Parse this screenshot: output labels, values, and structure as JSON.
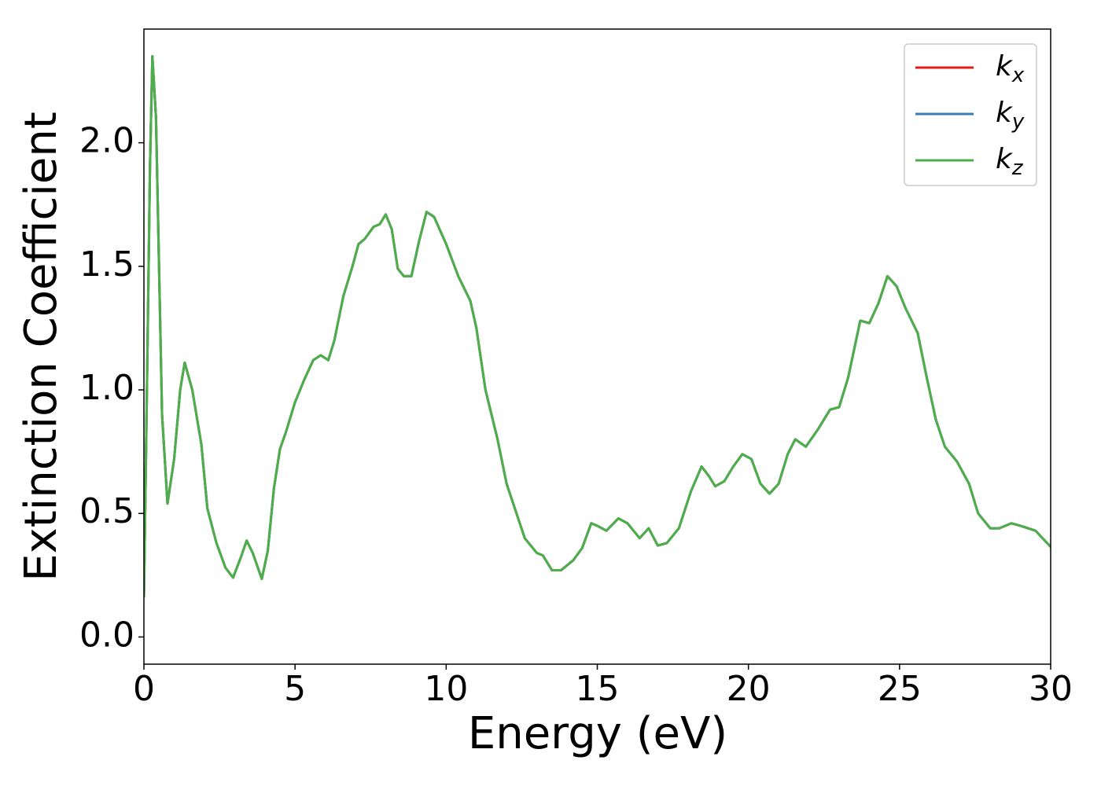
{
  "chart_data": {
    "type": "line",
    "xlabel": "Energy (eV)",
    "ylabel": "Extinction Coefficient",
    "x": [
      0,
      0.1,
      0.2,
      0.28,
      0.4,
      0.5,
      0.6,
      0.78,
      1.0,
      1.2,
      1.35,
      1.6,
      1.9,
      2.1,
      2.4,
      2.7,
      2.95,
      3.2,
      3.4,
      3.6,
      3.9,
      4.1,
      4.3,
      4.5,
      4.7,
      5.0,
      5.3,
      5.6,
      5.85,
      6.1,
      6.3,
      6.6,
      6.9,
      7.1,
      7.3,
      7.6,
      7.8,
      8.0,
      8.2,
      8.4,
      8.6,
      8.85,
      9.1,
      9.35,
      9.6,
      10.0,
      10.4,
      10.8,
      11.0,
      11.3,
      11.7,
      12.0,
      12.3,
      12.6,
      13.0,
      13.2,
      13.5,
      13.8,
      14.2,
      14.5,
      14.8,
      15.0,
      15.3,
      15.7,
      16.0,
      16.4,
      16.7,
      17.0,
      17.3,
      17.7,
      18.1,
      18.45,
      18.7,
      18.9,
      19.2,
      19.5,
      19.8,
      20.1,
      20.4,
      20.7,
      21.0,
      21.3,
      21.55,
      21.9,
      22.3,
      22.7,
      23.0,
      23.3,
      23.7,
      24.0,
      24.3,
      24.6,
      24.9,
      25.2,
      25.6,
      25.9,
      26.2,
      26.5,
      26.9,
      27.3,
      27.6,
      28.0,
      28.3,
      28.7,
      29.0,
      29.5,
      30.0
    ],
    "series": [
      {
        "name": "kx",
        "color": "#e41a1c",
        "values": [
          0.16,
          1.0,
          1.9,
          2.35,
          2.1,
          1.5,
          0.9,
          0.54,
          0.72,
          1.0,
          1.11,
          1.0,
          0.78,
          0.52,
          0.38,
          0.28,
          0.24,
          0.32,
          0.39,
          0.34,
          0.235,
          0.35,
          0.6,
          0.76,
          0.83,
          0.95,
          1.04,
          1.12,
          1.14,
          1.12,
          1.2,
          1.38,
          1.5,
          1.59,
          1.61,
          1.66,
          1.67,
          1.71,
          1.65,
          1.49,
          1.46,
          1.46,
          1.6,
          1.72,
          1.7,
          1.59,
          1.46,
          1.36,
          1.25,
          1.0,
          0.8,
          0.62,
          0.51,
          0.4,
          0.34,
          0.33,
          0.27,
          0.27,
          0.31,
          0.36,
          0.46,
          0.45,
          0.43,
          0.48,
          0.46,
          0.4,
          0.44,
          0.37,
          0.38,
          0.44,
          0.59,
          0.69,
          0.65,
          0.61,
          0.63,
          0.69,
          0.74,
          0.72,
          0.62,
          0.58,
          0.62,
          0.74,
          0.8,
          0.77,
          0.84,
          0.92,
          0.93,
          1.05,
          1.28,
          1.27,
          1.35,
          1.46,
          1.42,
          1.33,
          1.23,
          1.05,
          0.88,
          0.77,
          0.71,
          0.62,
          0.5,
          0.44,
          0.44,
          0.46,
          0.45,
          0.43,
          0.365
        ]
      },
      {
        "name": "ky",
        "color": "#377eb8",
        "values": [
          0.16,
          1.0,
          1.9,
          2.35,
          2.1,
          1.5,
          0.9,
          0.54,
          0.72,
          1.0,
          1.11,
          1.0,
          0.78,
          0.52,
          0.38,
          0.28,
          0.24,
          0.32,
          0.39,
          0.34,
          0.235,
          0.35,
          0.6,
          0.76,
          0.83,
          0.95,
          1.04,
          1.12,
          1.14,
          1.12,
          1.2,
          1.38,
          1.5,
          1.59,
          1.61,
          1.66,
          1.67,
          1.71,
          1.65,
          1.49,
          1.46,
          1.46,
          1.6,
          1.72,
          1.7,
          1.59,
          1.46,
          1.36,
          1.25,
          1.0,
          0.8,
          0.62,
          0.51,
          0.4,
          0.34,
          0.33,
          0.27,
          0.27,
          0.31,
          0.36,
          0.46,
          0.45,
          0.43,
          0.48,
          0.46,
          0.4,
          0.44,
          0.37,
          0.38,
          0.44,
          0.59,
          0.69,
          0.65,
          0.61,
          0.63,
          0.69,
          0.74,
          0.72,
          0.62,
          0.58,
          0.62,
          0.74,
          0.8,
          0.77,
          0.84,
          0.92,
          0.93,
          1.05,
          1.28,
          1.27,
          1.35,
          1.46,
          1.42,
          1.33,
          1.23,
          1.05,
          0.88,
          0.77,
          0.71,
          0.62,
          0.5,
          0.44,
          0.44,
          0.46,
          0.45,
          0.43,
          0.365
        ]
      },
      {
        "name": "kz",
        "color": "#4daf4a",
        "values": [
          0.16,
          1.0,
          1.9,
          2.35,
          2.1,
          1.5,
          0.9,
          0.54,
          0.72,
          1.0,
          1.11,
          1.0,
          0.78,
          0.52,
          0.38,
          0.28,
          0.24,
          0.32,
          0.39,
          0.34,
          0.235,
          0.35,
          0.6,
          0.76,
          0.83,
          0.95,
          1.04,
          1.12,
          1.14,
          1.12,
          1.2,
          1.38,
          1.5,
          1.59,
          1.61,
          1.66,
          1.67,
          1.71,
          1.65,
          1.49,
          1.46,
          1.46,
          1.6,
          1.72,
          1.7,
          1.59,
          1.46,
          1.36,
          1.25,
          1.0,
          0.8,
          0.62,
          0.51,
          0.4,
          0.34,
          0.33,
          0.27,
          0.27,
          0.31,
          0.36,
          0.46,
          0.45,
          0.43,
          0.48,
          0.46,
          0.4,
          0.44,
          0.37,
          0.38,
          0.44,
          0.59,
          0.69,
          0.65,
          0.61,
          0.63,
          0.69,
          0.74,
          0.72,
          0.62,
          0.58,
          0.62,
          0.74,
          0.8,
          0.77,
          0.84,
          0.92,
          0.93,
          1.05,
          1.28,
          1.27,
          1.35,
          1.46,
          1.42,
          1.33,
          1.23,
          1.05,
          0.88,
          0.77,
          0.71,
          0.62,
          0.5,
          0.44,
          0.44,
          0.46,
          0.45,
          0.43,
          0.365
        ]
      }
    ],
    "xlim": [
      0,
      30
    ],
    "xticks": [
      0,
      5,
      10,
      15,
      20,
      25,
      30
    ],
    "ylim": [
      -0.11,
      2.46
    ],
    "yticks": [
      {
        "value": 0,
        "label": "0.0"
      },
      0.5,
      {
        "value": 1,
        "label": "1.0"
      },
      1.5,
      {
        "value": 2,
        "label": "2.0"
      }
    ],
    "grid": false,
    "legend": "upper right"
  }
}
